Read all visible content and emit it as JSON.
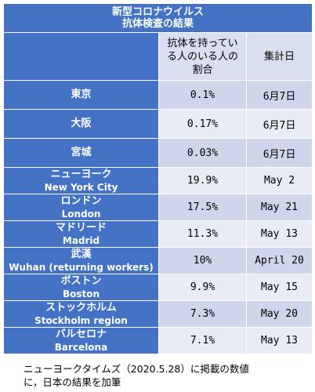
{
  "title": {
    "line1": "新型コロナウイルス",
    "line2": "抗体検査の結果"
  },
  "headers": {
    "ratio_line1": "抗体を持ってい",
    "ratio_line2": "る人のいる人の",
    "ratio_line3": "割合",
    "date": "集計日"
  },
  "rows": [
    {
      "name": "東京",
      "name_en": "",
      "ratio": "0.1%",
      "date": "6月7日"
    },
    {
      "name": "大阪",
      "name_en": "",
      "ratio": "0.17%",
      "date": "6月7日"
    },
    {
      "name": "宮城",
      "name_en": "",
      "ratio": "0.03%",
      "date": "6月7日"
    },
    {
      "name": "ニューヨーク",
      "name_en": "New York City",
      "ratio": "19.9%",
      "date": "May 2"
    },
    {
      "name": "ロンドン",
      "name_en": "London",
      "ratio": "17.5%",
      "date": "May 21"
    },
    {
      "name": "マドリード",
      "name_en": "Madrid",
      "ratio": "11.3%",
      "date": "May 13"
    },
    {
      "name": "武漢",
      "name_en": "Wuhan (returning workers)",
      "ratio": "10%",
      "date": "April 20"
    },
    {
      "name": "ボストン",
      "name_en": "Boston",
      "ratio": "9.9%",
      "date": "May 15"
    },
    {
      "name": "ストックホルム",
      "name_en": "Stockholm region",
      "ratio": "7.3%",
      "date": "May 20"
    },
    {
      "name": "バルセロナ",
      "name_en": "Barcelona",
      "ratio": "7.1%",
      "date": "May 13"
    }
  ],
  "footnote": {
    "line1": "ニューヨークタイムズ（2020.5.28）に掲載の数値",
    "line2": "に，日本の結果を加筆"
  }
}
